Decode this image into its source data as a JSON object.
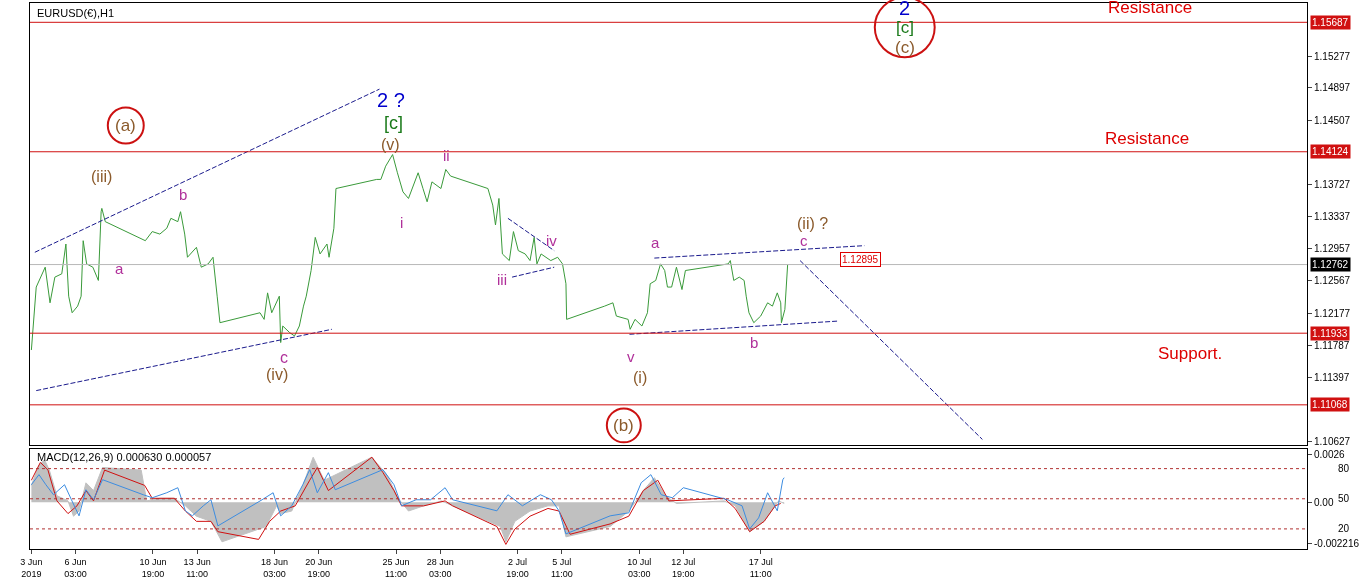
{
  "chart_data": [
    {
      "type": "line",
      "title": "EURUSD(€),H1",
      "tick_labels": "y",
      "xlim": [
        "2019-06-03T09:00",
        "2019-08-19T10:00"
      ],
      "ylim": [
        1.1058,
        1.1592
      ],
      "yticks": [
        1.15277,
        1.14897,
        1.14507,
        1.13727,
        1.13337,
        1.12957,
        1.12567,
        1.12177,
        1.11787,
        1.11397,
        1.10627
      ],
      "series": [
        {
          "color": "#3a9a3a",
          "x": [
            "2019-06-03T11:00",
            "2019-06-03T18:00",
            "2019-06-04T07:00",
            "2019-06-04T14:00",
            "2019-06-04T21:00",
            "2019-06-05T07:00",
            "2019-06-05T13:00",
            "2019-06-05T17:00",
            "2019-06-05T22:00",
            "2019-06-06T06:00",
            "2019-06-06T11:00",
            "2019-06-06T14:00",
            "2019-06-06T19:00",
            "2019-06-07T04:00",
            "2019-06-07T12:00",
            "2019-06-07T16:00",
            "2019-06-07T17:00",
            "2019-06-07T22:00",
            "2019-06-10T08:00",
            "2019-06-10T18:00",
            "2019-06-11T05:00",
            "2019-06-11T15:00",
            "2019-06-11T21:00",
            "2019-06-12T07:00",
            "2019-06-12T11:00",
            "2019-06-12T17:00",
            "2019-06-12T21:00",
            "2019-06-13T10:00",
            "2019-06-13T17:00",
            "2019-06-14T03:00",
            "2019-06-14T10:00",
            "2019-06-14T16:00",
            "2019-06-14T20:00",
            "2019-06-17T06:00",
            "2019-06-17T12:00",
            "2019-06-17T17:00",
            "2019-06-17T23:00",
            "2019-06-18T10:00",
            "2019-06-18T12:00",
            "2019-06-18T15:00",
            "2019-06-19T01:00",
            "2019-06-19T08:00",
            "2019-06-19T15:00",
            "2019-06-19T21:00",
            "2019-06-20T01:00",
            "2019-06-20T08:00",
            "2019-06-20T14:00",
            "2019-06-20T21:00",
            "2019-06-21T07:00",
            "2019-06-21T10:00",
            "2019-06-21T17:00",
            "2019-06-21T20:00",
            "2019-06-24T07:00",
            "2019-06-24T13:00",
            "2019-06-24T20:00",
            "2019-06-25T06:00",
            "2019-06-25T13:00",
            "2019-06-25T21:00",
            "2019-06-26T05:00",
            "2019-06-26T19:00",
            "2019-06-27T02:00",
            "2019-06-27T08:00",
            "2019-06-27T15:00",
            "2019-06-28T04:00",
            "2019-06-28T11:00",
            "2019-06-28T18:00",
            "2019-07-01T00:00",
            "2019-07-01T07:00",
            "2019-07-01T11:00",
            "2019-07-01T16:00",
            "2019-07-01T21:00",
            "2019-07-02T07:00",
            "2019-07-02T13:00",
            "2019-07-02T20:00",
            "2019-07-03T06:00",
            "2019-07-03T13:00",
            "2019-07-03T19:00",
            "2019-07-03T23:00",
            "2019-07-04T05:00",
            "2019-07-04T19:00",
            "2019-07-05T05:00",
            "2019-07-05T12:00",
            "2019-07-05T17:00",
            "2019-07-05T18:00",
            "2019-07-08T01:00",
            "2019-07-08T13:00",
            "2019-07-08T18:00",
            "2019-07-09T11:00",
            "2019-07-09T14:00",
            "2019-07-09T21:00",
            "2019-07-10T07:00",
            "2019-07-10T15:00",
            "2019-07-10T19:00",
            "2019-07-11T03:00",
            "2019-07-11T10:00",
            "2019-07-11T16:00",
            "2019-07-11T20:00",
            "2019-07-12T02:00",
            "2019-07-12T09:00",
            "2019-07-12T17:00",
            "2019-07-12T22:00",
            "2019-07-15T12:00",
            "2019-07-15T15:00",
            "2019-07-15T20:00",
            "2019-07-16T04:00",
            "2019-07-16T11:00",
            "2019-07-16T14:00",
            "2019-07-16T18:00",
            "2019-07-17T01:00",
            "2019-07-17T11:00",
            "2019-07-17T21:00",
            "2019-07-18T04:00",
            "2019-07-18T11:00",
            "2019-07-18T16:00",
            "2019-07-18T17:00",
            "2019-07-18T22:00",
            "2019-07-19T02:00"
          ],
          "values": [
            1.1173,
            1.1249,
            1.1273,
            1.123,
            1.1261,
            1.1265,
            1.1301,
            1.1238,
            1.1218,
            1.1226,
            1.1238,
            1.1305,
            1.1277,
            1.1273,
            1.1257,
            1.134,
            1.1344,
            1.1328,
            1.1305,
            1.1316,
            1.1313,
            1.132,
            1.1332,
            1.1328,
            1.134,
            1.1313,
            1.1285,
            1.1297,
            1.1273,
            1.1277,
            1.1285,
            1.1238,
            1.1206,
            1.1218,
            1.121,
            1.1242,
            1.1218,
            1.1238,
            1.1182,
            1.1202,
            1.1194,
            1.119,
            1.1202,
            1.1226,
            1.1238,
            1.1269,
            1.1309,
            1.1289,
            1.1301,
            1.1285,
            1.132,
            1.1368,
            1.1379,
            1.1379,
            1.1395,
            1.1409,
            1.1387,
            1.1364,
            1.1356,
            1.1387,
            1.1368,
            1.1352,
            1.1376,
            1.1368,
            1.1391,
            1.1383,
            1.1368,
            1.1348,
            1.1324,
            1.1356,
            1.1289,
            1.1281,
            1.1316,
            1.1293,
            1.1289,
            1.1281,
            1.1309,
            1.1277,
            1.1289,
            1.1281,
            1.1285,
            1.1277,
            1.1253,
            1.121,
            1.1226,
            1.123,
            1.1214,
            1.121,
            1.1198,
            1.121,
            1.1202,
            1.1218,
            1.1253,
            1.1257,
            1.1277,
            1.1269,
            1.1249,
            1.1249,
            1.1273,
            1.1246,
            1.1269,
            1.1277,
            1.1281,
            1.1257,
            1.1261,
            1.1257,
            1.1238,
            1.1218,
            1.1206,
            1.1214,
            1.123,
            1.1226,
            1.1242,
            1.123,
            1.1206,
            1.1222,
            1.1276
          ]
        },
        {
          "color": "#1a1a8c",
          "line_style": "dashed",
          "x": [
            "2019-06-03T16:00",
            "2019-06-24T11:00"
          ],
          "values": [
            1.1291,
            1.1488
          ]
        },
        {
          "color": "#1a1a8c",
          "line_style": "dashed",
          "x": [
            "2019-06-03T18:00",
            "2019-06-21T14:00"
          ],
          "values": [
            1.1124,
            1.1198
          ]
        },
        {
          "color": "#1a1a8c",
          "line_style": "dashed",
          "x": [
            "2019-07-02T05:00",
            "2019-07-05T00:00"
          ],
          "values": [
            1.1332,
            1.1293
          ]
        },
        {
          "color": "#1a1a8c",
          "line_style": "dashed",
          "x": [
            "2019-07-02T11:00",
            "2019-07-05T00:00"
          ],
          "values": [
            1.1261,
            1.1273
          ]
        },
        {
          "color": "#1a1a8c",
          "line_style": "dashed",
          "x": [
            "2019-07-11T01:00",
            "2019-07-23T17:00"
          ],
          "values": [
            1.1284,
            1.1299
          ]
        },
        {
          "color": "#1a1a8c",
          "line_style": "dashed",
          "x": [
            "2019-07-09T13:00",
            "2019-07-22T04:00"
          ],
          "values": [
            1.1192,
            1.1208
          ]
        },
        {
          "color": "#1a1a8c",
          "line_style": "dashed",
          "x": [
            "2019-07-19T20:00",
            "2019-07-30T20:00"
          ],
          "values": [
            1.1281,
            1.1065
          ]
        }
      ],
      "ref_lines": [
        {
          "axis": "y",
          "value": 1.15687,
          "label": "1.15687",
          "color": "#d01010"
        },
        {
          "axis": "y",
          "value": 1.14124,
          "label": "1.14124",
          "color": "#d01010"
        },
        {
          "axis": "y",
          "value": 1.11933,
          "label": "1.11933",
          "color": "#d01010"
        },
        {
          "axis": "y",
          "value": 1.11068,
          "label": "1.11068",
          "color": "#d01010"
        },
        {
          "axis": "y",
          "value": 1.12762,
          "label": "1.12762",
          "color": "#b8b8b8"
        }
      ],
      "annotations": [
        "(a)",
        {
          "text": "(iii)",
          "x": "2019-06-07T17:00",
          "y": 1.1344
        },
        {
          "text": "b",
          "x": "2019-06-12T11:00",
          "y": 1.134
        },
        {
          "text": "a",
          "x": "2019-06-07T12:00",
          "y": 1.1257
        },
        {
          "text": "c",
          "x": "2019-06-18T12:00",
          "y": 1.1182
        },
        {
          "text": "(iv)",
          "x": "2019-06-18T12:00",
          "y": 1.1182
        },
        {
          "text": "2 ?",
          "x": "2019-06-25T06:00",
          "y": 1.1409
        },
        {
          "text": "[c]",
          "x": "2019-06-25T06:00",
          "y": 1.1409
        },
        {
          "text": "(v)",
          "x": "2019-06-25T06:00",
          "y": 1.1409
        },
        {
          "text": "i",
          "x": "2019-06-25T21:00",
          "y": 1.1364
        },
        {
          "text": "ii",
          "x": "2019-06-28T11:00",
          "y": 1.1391
        },
        {
          "text": "iii",
          "x": "2019-07-01T21:00",
          "y": 1.1289
        },
        {
          "text": "iv",
          "x": "2019-07-04T05:00",
          "y": 1.1289
        },
        {
          "text": "v",
          "x": "2019-07-09T11:00",
          "y": 1.121
        },
        "(i)",
        {
          "text": "a",
          "x": "2019-07-11T10:00",
          "y": 1.1277
        },
        {
          "text": "b",
          "x": "2019-07-17T01:00",
          "y": 1.1206
        },
        {
          "text": "c",
          "x": "2019-07-19T02:00",
          "y": 1.1276
        },
        {
          "text": "(ii) ?",
          "x": "2019-07-19T02:00",
          "y": 1.1276
        },
        "(b)",
        "2",
        "[c]",
        "(c)",
        {
          "text": "Resistance",
          "x": "2019-08-09T22:00",
          "y": 1.15687
        },
        {
          "text": "Resistance",
          "x": "2019-08-09T19:00",
          "y": 1.14124
        },
        {
          "text": "Support.",
          "x": "2019-08-12T08:00",
          "y": 1.11933
        },
        "1.12895"
      ]
    },
    {
      "type": "line",
      "title": "MACD(12,26,9) 0.000630 0.000057",
      "xlim": [
        "2019-06-03T09:00",
        "2019-08-19T10:00"
      ],
      "xticks": [
        {
          "value": "2019-06-03T11:00",
          "label": "3 Jun 2019"
        },
        {
          "value": "2019-06-06T03:00",
          "label": "6 Jun 03:00"
        },
        {
          "value": "2019-06-10T19:00",
          "label": "10 Jun 19:00"
        },
        {
          "value": "2019-06-13T11:00",
          "label": "13 Jun 11:00"
        },
        {
          "value": "2019-06-18T03:00",
          "label": "18 Jun 03:00"
        },
        {
          "value": "2019-06-20T19:00",
          "label": "20 Jun 19:00"
        },
        {
          "value": "2019-06-25T11:00",
          "label": "25 Jun 11:00"
        },
        {
          "value": "2019-06-28T03:00",
          "label": "28 Jun 03:00"
        },
        {
          "value": "2019-07-02T19:00",
          "label": "2 Jul 19:00"
        },
        {
          "value": "2019-07-05T11:00",
          "label": "5 Jul 11:00"
        },
        {
          "value": "2019-07-10T03:00",
          "label": "10 Jul 03:00"
        },
        {
          "value": "2019-07-12T19:00",
          "label": "12 Jul 19:00"
        },
        {
          "value": "2019-07-17T11:00",
          "label": "17 Jul 11:00"
        }
      ],
      "ylim": [
        -0.00253,
        0.00292
      ],
      "yticks": [
        0.0026,
        {
          "value": 0,
          "label": "0.00"
        },
        -0.002216
      ],
      "y2lim": [
        0,
        100
      ],
      "y2ticks": [
        80,
        50,
        20
      ],
      "series": [
        {
          "type": "area",
          "color": "#c0c0c0",
          "x": [
            "2019-06-03T11:00",
            "2019-06-03T22:00",
            "2019-06-04T06:00",
            "2019-06-04T13:00",
            "2019-06-05T00:00",
            "2019-06-05T16:00",
            "2019-06-06T00:00",
            "2019-06-06T08:00",
            "2019-06-06T18:00",
            "2019-06-07T05:00",
            "2019-06-07T18:00",
            "2019-06-10T02:00",
            "2019-06-10T10:00",
            "2019-06-11T05:00",
            "2019-06-12T02:00",
            "2019-06-12T18:00",
            "2019-06-13T10:00",
            "2019-06-14T07:00",
            "2019-06-14T23:00",
            "2019-06-17T15:00",
            "2019-06-18T06:00",
            "2019-06-18T12:00",
            "2019-06-19T04:00",
            "2019-06-19T20:00",
            "2019-06-20T11:00",
            "2019-06-21T03:00",
            "2019-06-24T00:00",
            "2019-06-24T22:00",
            "2019-06-25T14:00",
            "2019-06-26T05:00",
            "2019-06-27T03:00",
            "2019-06-28T05:00",
            "2019-06-28T21:00",
            "2019-07-01T18:00",
            "2019-07-02T02:00",
            "2019-07-02T15:00",
            "2019-07-03T13:00",
            "2019-07-04T15:00",
            "2019-07-05T07:00",
            "2019-07-05T17:00",
            "2019-07-08T09:00",
            "2019-07-09T12:00",
            "2019-07-10T09:00",
            "2019-07-11T01:00",
            "2019-07-11T17:00",
            "2019-07-12T09:00",
            "2019-07-15T06:00",
            "2019-07-15T22:00",
            "2019-07-16T19:00",
            "2019-07-17T16:00",
            "2019-07-18T13:00",
            "2019-07-18T21:00"
          ],
          "values": [
            0.00092,
            0.00203,
            0.00231,
            0.00175,
            0.00036,
            8e-05,
            -0.00075,
            -0.00047,
            0.00106,
            0.00064,
            0.00189,
            0.00175,
            8e-05,
            0.00022,
            0.00022,
            -0.00019,
            -0.00075,
            -0.00103,
            -0.00214,
            -0.00131,
            -0.00019,
            -0.00061,
            -0.00047,
            0.00092,
            0.00245,
            0.0012,
            0.00245,
            0.00148,
            0.00022,
            -0.00047,
            -0.00019,
            8e-05,
            -0.00019,
            -0.00131,
            -0.00214,
            -0.00103,
            -0.00047,
            -0.00019,
            -0.00019,
            -0.00187,
            -0.00131,
            -0.00047,
            0.00064,
            0.00134,
            0.00036,
            -6e-05,
            8e-05,
            -0.00019,
            -0.00159,
            -0.00103,
            8e-05,
            -6e-05
          ]
        },
        {
          "type": "line",
          "color": "#d01010",
          "x": [
            "2019-06-03T11:00",
            "2019-06-04T00:00",
            "2019-06-04T11:00",
            "2019-06-05T00:00",
            "2019-06-05T16:00",
            "2019-06-06T05:00",
            "2019-06-06T18:00",
            "2019-06-07T05:00",
            "2019-06-07T21:00",
            "2019-06-10T07:00",
            "2019-06-10T18:00",
            "2019-06-12T02:00",
            "2019-06-12T18:00",
            "2019-06-13T10:00",
            "2019-06-14T07:00",
            "2019-06-14T17:00",
            "2019-06-17T04:00",
            "2019-06-17T20:00",
            "2019-06-18T12:00",
            "2019-06-19T09:00",
            "2019-06-20T06:00",
            "2019-06-20T17:00",
            "2019-06-21T09:00",
            "2019-06-24T00:00",
            "2019-06-24T16:00",
            "2019-06-25T08:00",
            "2019-06-25T19:00",
            "2019-06-27T03:00",
            "2019-06-28T10:00",
            "2019-06-28T21:00",
            "2019-07-01T13:00",
            "2019-07-02T02:00",
            "2019-07-02T15:00",
            "2019-07-03T13:00",
            "2019-07-04T15:00",
            "2019-07-05T07:00",
            "2019-07-05T23:00",
            "2019-07-08T09:00",
            "2019-07-09T12:00",
            "2019-07-10T09:00",
            "2019-07-11T06:00",
            "2019-07-11T22:00",
            "2019-07-15T06:00",
            "2019-07-15T22:00",
            "2019-07-16T19:00",
            "2019-07-17T16:00",
            "2019-07-18T08:00",
            "2019-07-18T16:00"
          ],
          "values": [
            0.0012,
            0.00217,
            0.00175,
            8e-05,
            -0.00061,
            -0.00019,
            0.00064,
            8e-05,
            0.00175,
            0.00092,
            0.00022,
            0.00022,
            -0.00047,
            -0.00103,
            -0.00103,
            -0.00159,
            -0.00201,
            -0.00103,
            -0.00047,
            -0.00019,
            0.0012,
            0.00189,
            0.00064,
            0.00245,
            0.00162,
            0.00064,
            -0.00019,
            -0.00019,
            8e-05,
            -0.00019,
            -0.00131,
            -0.00228,
            -0.00145,
            -0.00075,
            -0.00033,
            -0.00047,
            -0.00173,
            -0.00117,
            -0.00075,
            0.00064,
            0.0012,
            8e-05,
            0.00022,
            -0.00033,
            -0.00159,
            -0.00103,
            -0.00019,
            -6e-05
          ]
        },
        {
          "type": "line",
          "color": "#3c8ce0",
          "axis": "y2",
          "x": [
            "2019-06-03T11:00",
            "2019-06-03T22:00",
            "2019-06-04T08:00",
            "2019-06-04T19:00",
            "2019-06-05T11:00",
            "2019-06-05T21:00",
            "2019-06-06T08:00",
            "2019-06-06T18:00",
            "2019-06-07T05:00",
            "2019-06-07T18:00",
            "2019-06-10T05:00",
            "2019-06-10T18:00",
            "2019-06-11T15:00",
            "2019-06-12T07:00",
            "2019-06-12T18:00",
            "2019-06-13T04:00",
            "2019-06-13T20:00",
            "2019-06-14T07:00",
            "2019-06-14T17:00",
            "2019-06-17T09:00",
            "2019-06-18T01:00",
            "2019-06-18T12:00",
            "2019-06-19T04:00",
            "2019-06-19T20:00",
            "2019-06-20T06:00",
            "2019-06-20T17:00",
            "2019-06-21T09:00",
            "2019-06-21T19:00",
            "2019-06-24T16:00",
            "2019-06-25T08:00",
            "2019-06-25T19:00",
            "2019-06-26T16:00",
            "2019-06-27T13:00",
            "2019-06-28T10:00",
            "2019-06-28T21:00",
            "2019-07-01T13:00",
            "2019-07-02T05:00",
            "2019-07-03T02:00",
            "2019-07-04T04:00",
            "2019-07-04T20:00",
            "2019-07-05T07:00",
            "2019-07-05T17:00",
            "2019-07-08T09:00",
            "2019-07-09T12:00",
            "2019-07-10T06:00",
            "2019-07-10T20:00",
            "2019-07-11T11:00",
            "2019-07-12T03:00",
            "2019-07-12T19:00",
            "2019-07-15T11:00",
            "2019-07-16T08:00",
            "2019-07-16T19:00",
            "2019-07-17T08:00",
            "2019-07-17T21:00",
            "2019-07-18T11:00",
            "2019-07-18T19:00",
            "2019-07-18T21:00"
          ],
          "values": [
            64,
            74,
            64,
            54,
            64,
            49,
            33,
            59,
            49,
            69,
            54,
            51,
            56,
            61,
            38,
            33,
            43,
            49,
            23,
            49,
            56,
            33,
            43,
            64,
            79,
            56,
            76,
            59,
            79,
            64,
            43,
            49,
            49,
            61,
            49,
            38,
            54,
            43,
            54,
            49,
            38,
            15,
            33,
            36,
            66,
            74,
            54,
            51,
            61,
            49,
            43,
            20,
            31,
            56,
            38,
            69,
            71
          ]
        }
      ],
      "ref_lines": [
        {
          "axis": "y2",
          "value": 80,
          "color": "#b03030",
          "line_style": "dotted"
        },
        {
          "axis": "y2",
          "value": 50,
          "color": "#b03030",
          "line_style": "dotted"
        },
        {
          "axis": "y2",
          "value": 20,
          "color": "#b03030",
          "line_style": "dotted"
        }
      ]
    }
  ]
}
